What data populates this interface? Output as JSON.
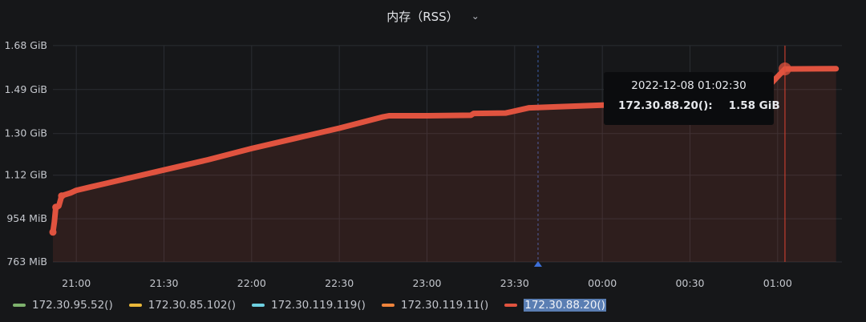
{
  "panel": {
    "title": "内存（RSS）",
    "menu_icon": "chevron-down-icon"
  },
  "chart_data": {
    "type": "area",
    "title": "内存（RSS）",
    "xlabel": "",
    "ylabel": "",
    "x_ticks": [
      "21:00",
      "21:30",
      "22:00",
      "22:30",
      "23:00",
      "23:30",
      "00:00",
      "00:30",
      "01:00"
    ],
    "y_ticks": [
      "763 MiB",
      "954 MiB",
      "1.12 GiB",
      "1.30 GiB",
      "1.49 GiB",
      "1.68 GiB"
    ],
    "xlim": [
      "2022-12-07 20:52",
      "2022-12-08 01:22"
    ],
    "ylim_mib": [
      763,
      1720
    ],
    "grid": true,
    "legend_position": "bottom-left",
    "series": [
      {
        "name": "172.30.95.52()",
        "color": "#7eb26d",
        "points": []
      },
      {
        "name": "172.30.85.102()",
        "color": "#eab839",
        "points": []
      },
      {
        "name": "172.30.119.119()",
        "color": "#6ed0e0",
        "points": []
      },
      {
        "name": "172.30.119.11()",
        "color": "#ef843c",
        "points": []
      },
      {
        "name": "172.30.88.20()",
        "color": "#e0533f",
        "points": [
          [
            "2022-12-07 20:52:00",
            895
          ],
          [
            "2022-12-07 20:52:30",
            940
          ],
          [
            "2022-12-07 20:53:00",
            1005
          ],
          [
            "2022-12-07 20:54:00",
            1010
          ],
          [
            "2022-12-07 20:55:00",
            1055
          ],
          [
            "2022-12-07 20:56:00",
            1060
          ],
          [
            "2022-12-07 20:58:00",
            1068
          ],
          [
            "2022-12-07 21:00:00",
            1080
          ],
          [
            "2022-12-07 21:05:00",
            1095
          ],
          [
            "2022-12-07 21:15:00",
            1125
          ],
          [
            "2022-12-07 21:30:00",
            1170
          ],
          [
            "2022-12-07 21:45:00",
            1215
          ],
          [
            "2022-12-07 22:00:00",
            1265
          ],
          [
            "2022-12-07 22:15:00",
            1310
          ],
          [
            "2022-12-07 22:30:00",
            1355
          ],
          [
            "2022-12-07 22:45:00",
            1405
          ],
          [
            "2022-12-07 22:47:00",
            1410
          ],
          [
            "2022-12-07 23:00:00",
            1410
          ],
          [
            "2022-12-07 23:15:00",
            1412
          ],
          [
            "2022-12-07 23:16:00",
            1420
          ],
          [
            "2022-12-07 23:27:00",
            1422
          ],
          [
            "2022-12-07 23:35:00",
            1445
          ],
          [
            "2022-12-07 23:45:00",
            1450
          ],
          [
            "2022-12-08 00:00:00",
            1457
          ],
          [
            "2022-12-08 00:15:00",
            1462
          ],
          [
            "2022-12-08 00:30:00",
            1468
          ],
          [
            "2022-12-08 00:32:00",
            1545
          ],
          [
            "2022-12-08 00:35:00",
            1545
          ],
          [
            "2022-12-08 00:37:00",
            1580
          ],
          [
            "2022-12-08 00:38:00",
            1542
          ],
          [
            "2022-12-08 00:47:00",
            1548
          ],
          [
            "2022-12-08 00:48:00",
            1515
          ],
          [
            "2022-12-08 00:55:00",
            1515
          ],
          [
            "2022-12-08 01:02:30",
            1617
          ],
          [
            "2022-12-08 01:20:00",
            1618
          ]
        ]
      }
    ]
  },
  "tooltip": {
    "time": "2022-12-08 01:02:30",
    "series": "172.30.88.20():",
    "value": "1.58 GiB"
  }
}
